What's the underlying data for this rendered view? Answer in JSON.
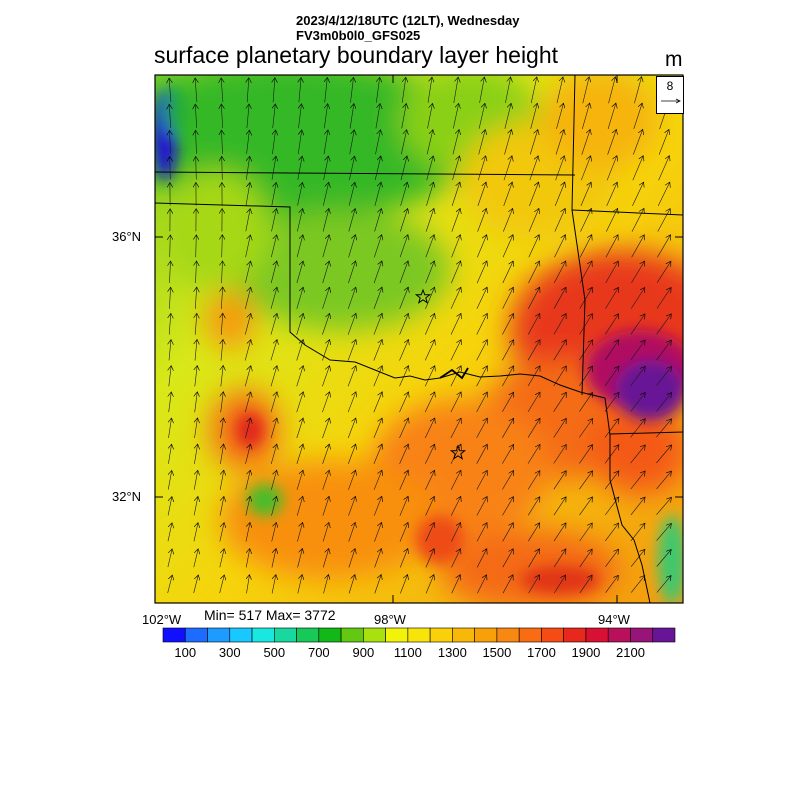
{
  "header": {
    "datetime": "2023/4/12/18UTC (12LT), Wednesday",
    "model": "FV3m0b0l0_GFS025"
  },
  "map": {
    "title": "surface planetary boundary layer height",
    "unit": "m",
    "lat_labels": [
      "36°N",
      "32°N"
    ],
    "lon_labels": [
      "102°W",
      "98°W",
      "94°W"
    ],
    "reference_vector": {
      "value": "8",
      "icon": "arrow-right-icon"
    },
    "markers": [
      "star-icon",
      "star-icon"
    ],
    "stats": "Min= 517 Max= 3772"
  },
  "colorbar": {
    "colors": [
      "#1010ff",
      "#1e6cff",
      "#1e9bff",
      "#18c8ff",
      "#1ae8e0",
      "#18d8a0",
      "#18c858",
      "#12b818",
      "#62c812",
      "#a8e010",
      "#f2f20a",
      "#f8e40a",
      "#fad00a",
      "#f8b80a",
      "#f8a00a",
      "#f88812",
      "#f86c14",
      "#f44c14",
      "#e8281c",
      "#d81034",
      "#b8105a",
      "#981478",
      "#681496"
    ],
    "labels": [
      "100",
      "300",
      "500",
      "700",
      "900",
      "1100",
      "1300",
      "1500",
      "1700",
      "1900",
      "2100"
    ]
  }
}
